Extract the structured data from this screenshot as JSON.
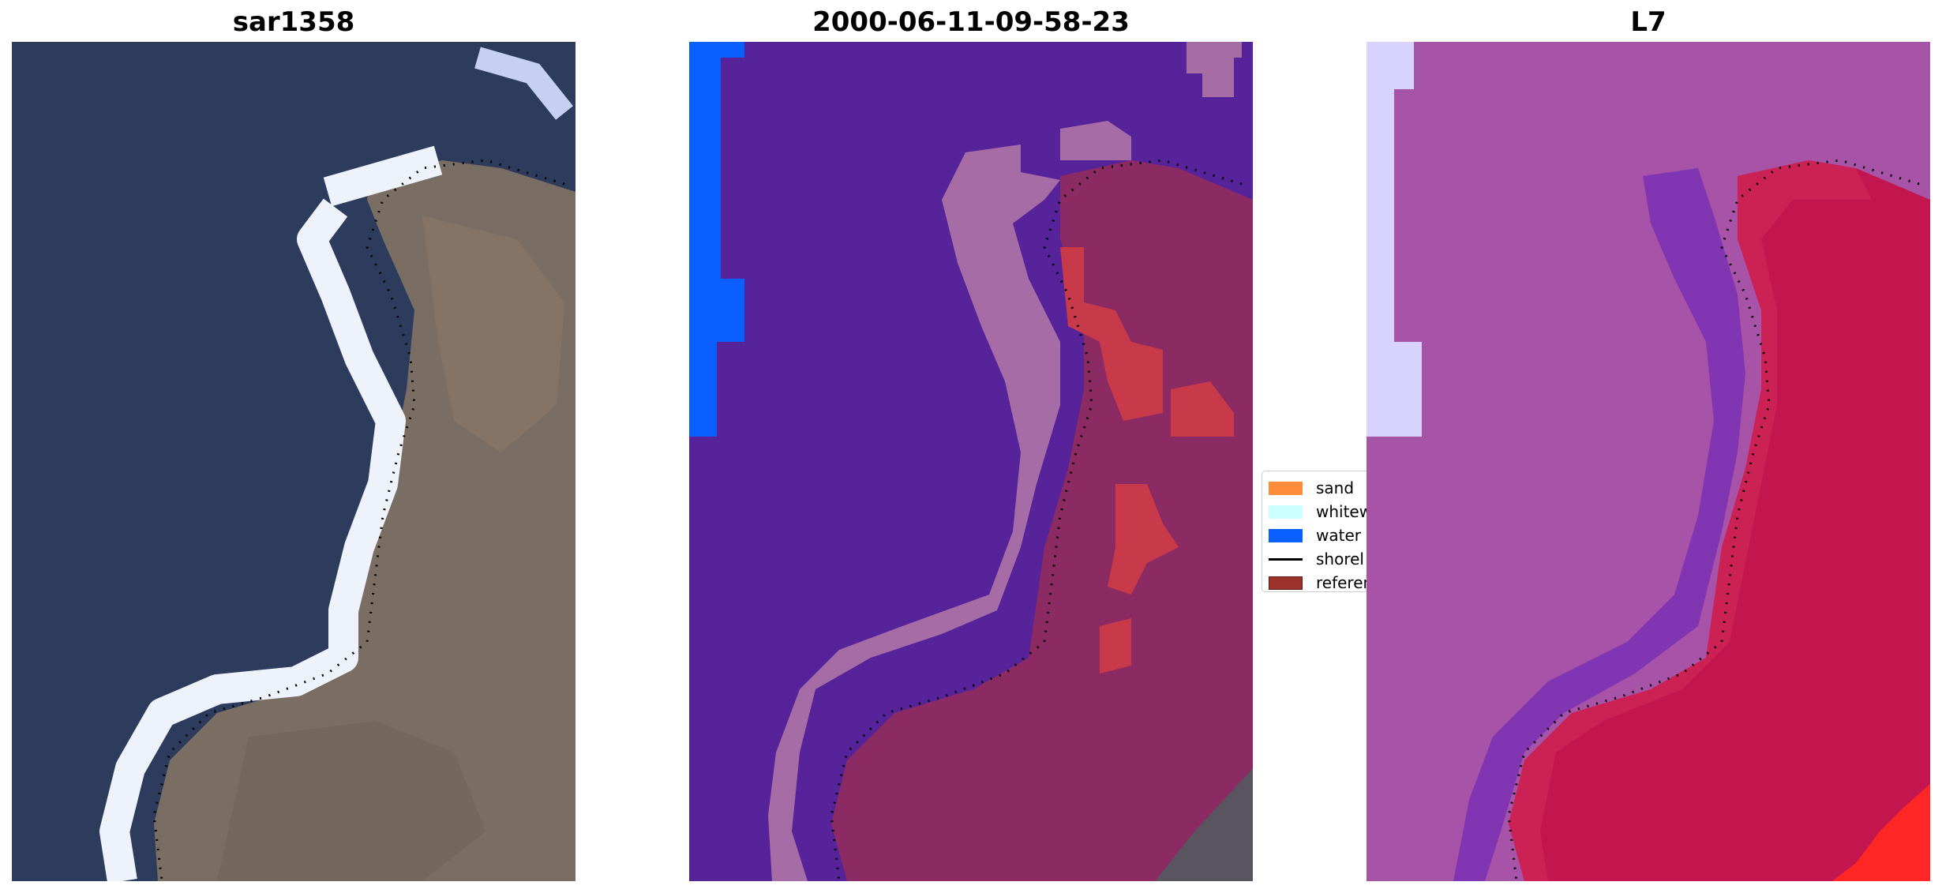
{
  "panels": [
    {
      "title": "sar1358"
    },
    {
      "title": "2000-06-11-09-58-23"
    },
    {
      "title": "L7"
    }
  ],
  "legend": {
    "items": [
      {
        "label": "sand",
        "color": "#ff8c3a",
        "kind": "patch"
      },
      {
        "label": "whitew",
        "color": "#ccffff",
        "kind": "patch"
      },
      {
        "label": "water",
        "color": "#0a5fff",
        "kind": "patch"
      },
      {
        "label": "shorel",
        "color": "#000000",
        "kind": "line"
      },
      {
        "label": "referen",
        "color": "#9c302b",
        "kind": "patch"
      }
    ]
  },
  "colors": {
    "rgb_water": "#2c3a5e",
    "rgb_whitewater": "#e6ecf6",
    "rgb_land": "#7b6d62",
    "class_water_bg": "#56239a",
    "class_water_blue": "#0a5fff",
    "class_whitewater": "#a66ca6",
    "class_land_overlay": "#8c2660",
    "class_land_red": "#c83a4a",
    "l7_water": "#a653a8",
    "l7_land": "#c4164e",
    "l7_channel": "#7a2fb6",
    "l7_bright": "#dcd6ff",
    "l7_red_corner": "#ff2020"
  }
}
